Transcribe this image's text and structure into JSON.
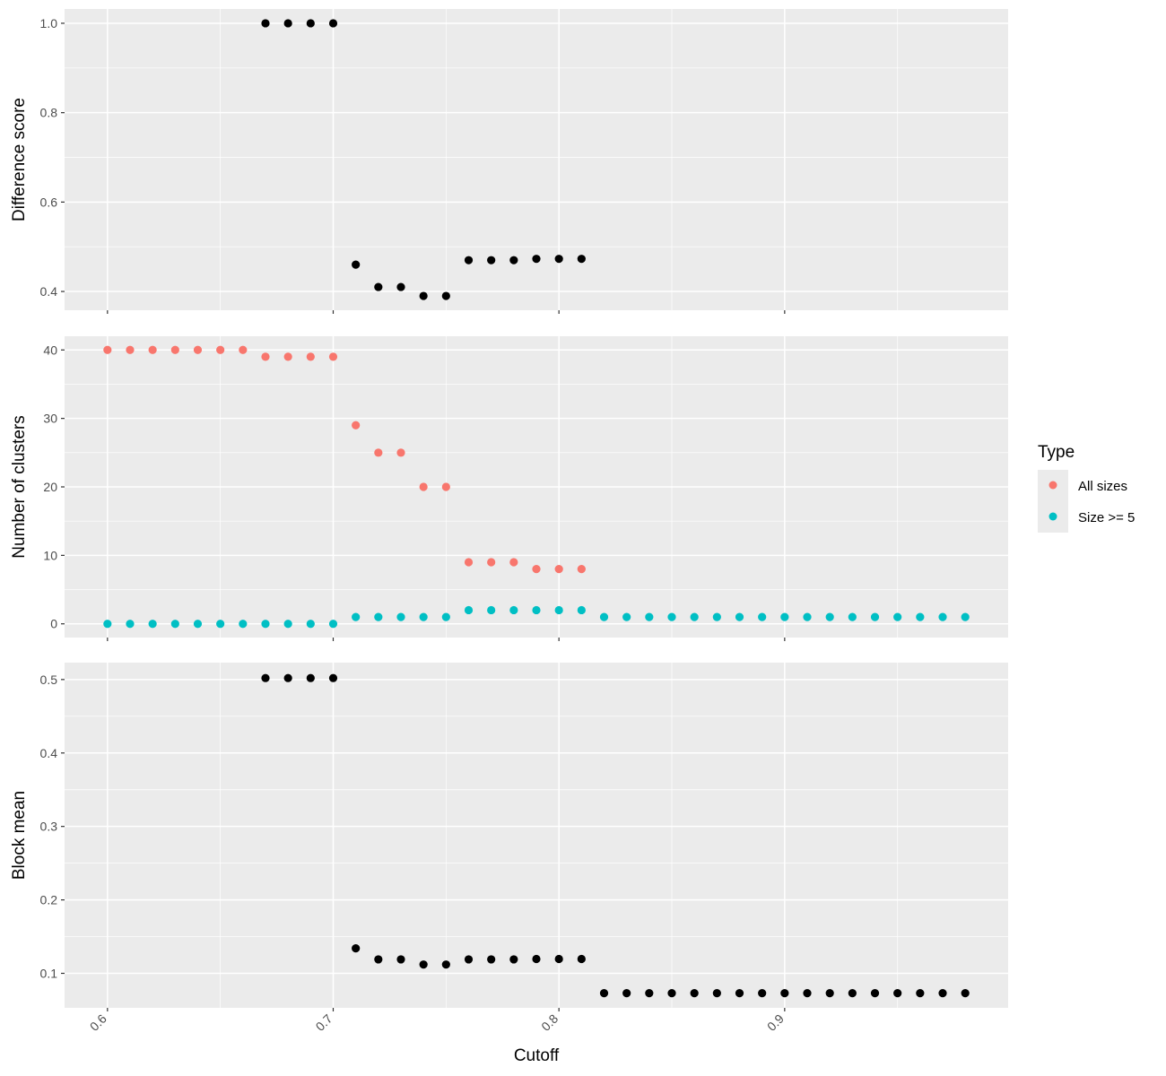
{
  "chart_data": {
    "type": "scatter",
    "xlabel": "Cutoff",
    "x_ticks": [
      "0.6",
      "0.7",
      "0.8",
      "0.9"
    ],
    "x_tick_values": [
      0.6,
      0.7,
      0.8,
      0.9
    ],
    "xlim": [
      0.581,
      0.999
    ],
    "grid": true,
    "legend": {
      "title": "Type",
      "position": "right",
      "entries": [
        {
          "label": "All sizes",
          "color": "#F8766D"
        },
        {
          "label": "Size >= 5",
          "color": "#00BFC4"
        }
      ]
    },
    "panels": [
      {
        "ylabel": "Difference score",
        "ylim": [
          0.358,
          1.032
        ],
        "y_ticks": [
          "0.4",
          "0.6",
          "0.8",
          "1.0"
        ],
        "y_tick_values": [
          0.4,
          0.6,
          0.8,
          1.0
        ],
        "series": [
          {
            "color": "#000000",
            "x": [
              0.67,
              0.68,
              0.69,
              0.7,
              0.71,
              0.72,
              0.73,
              0.74,
              0.75,
              0.76,
              0.77,
              0.78,
              0.79,
              0.8,
              0.81
            ],
            "y": [
              1.0,
              1.0,
              1.0,
              1.0,
              0.46,
              0.41,
              0.41,
              0.39,
              0.39,
              0.47,
              0.47,
              0.47,
              0.473,
              0.473,
              0.473
            ]
          }
        ]
      },
      {
        "ylabel": "Number of clusters",
        "ylim": [
          -2,
          42
        ],
        "y_ticks": [
          "0",
          "10",
          "20",
          "30",
          "40"
        ],
        "y_tick_values": [
          0,
          10,
          20,
          30,
          40
        ],
        "series": [
          {
            "name": "All sizes",
            "color": "#F8766D",
            "x": [
              0.6,
              0.61,
              0.62,
              0.63,
              0.64,
              0.65,
              0.66,
              0.67,
              0.68,
              0.69,
              0.7,
              0.71,
              0.72,
              0.73,
              0.74,
              0.75,
              0.76,
              0.77,
              0.78,
              0.79,
              0.8,
              0.81
            ],
            "y": [
              40,
              40,
              40,
              40,
              40,
              40,
              40,
              39,
              39,
              39,
              39,
              29,
              25,
              25,
              20,
              20,
              9,
              9,
              9,
              8,
              8,
              8
            ]
          },
          {
            "name": "Size >= 5",
            "color": "#00BFC4",
            "x": [
              0.6,
              0.61,
              0.62,
              0.63,
              0.64,
              0.65,
              0.66,
              0.67,
              0.68,
              0.69,
              0.7,
              0.71,
              0.72,
              0.73,
              0.74,
              0.75,
              0.76,
              0.77,
              0.78,
              0.79,
              0.8,
              0.81,
              0.82,
              0.83,
              0.84,
              0.85,
              0.86,
              0.87,
              0.88,
              0.89,
              0.9,
              0.91,
              0.92,
              0.93,
              0.94,
              0.95,
              0.96,
              0.97,
              0.98
            ],
            "y": [
              0,
              0,
              0,
              0,
              0,
              0,
              0,
              0,
              0,
              0,
              0,
              1,
              1,
              1,
              1,
              1,
              2,
              2,
              2,
              2,
              2,
              2,
              1,
              1,
              1,
              1,
              1,
              1,
              1,
              1,
              1,
              1,
              1,
              1,
              1,
              1,
              1,
              1,
              1
            ]
          }
        ]
      },
      {
        "ylabel": "Block mean",
        "ylim": [
          0.053,
          0.523
        ],
        "y_ticks": [
          "0.1",
          "0.2",
          "0.3",
          "0.4",
          "0.5"
        ],
        "y_tick_values": [
          0.1,
          0.2,
          0.3,
          0.4,
          0.5
        ],
        "series": [
          {
            "color": "#000000",
            "x": [
              0.67,
              0.68,
              0.69,
              0.7,
              0.71,
              0.72,
              0.73,
              0.74,
              0.75,
              0.76,
              0.77,
              0.78,
              0.79,
              0.8,
              0.81,
              0.82,
              0.83,
              0.84,
              0.85,
              0.86,
              0.87,
              0.88,
              0.89,
              0.9,
              0.91,
              0.92,
              0.93,
              0.94,
              0.95,
              0.96,
              0.97,
              0.98
            ],
            "y": [
              0.502,
              0.502,
              0.502,
              0.502,
              0.134,
              0.119,
              0.119,
              0.112,
              0.112,
              0.119,
              0.119,
              0.119,
              0.1195,
              0.1195,
              0.1195,
              0.073,
              0.073,
              0.073,
              0.073,
              0.073,
              0.073,
              0.073,
              0.073,
              0.073,
              0.073,
              0.073,
              0.073,
              0.073,
              0.073,
              0.073,
              0.073,
              0.073
            ]
          }
        ]
      }
    ]
  }
}
